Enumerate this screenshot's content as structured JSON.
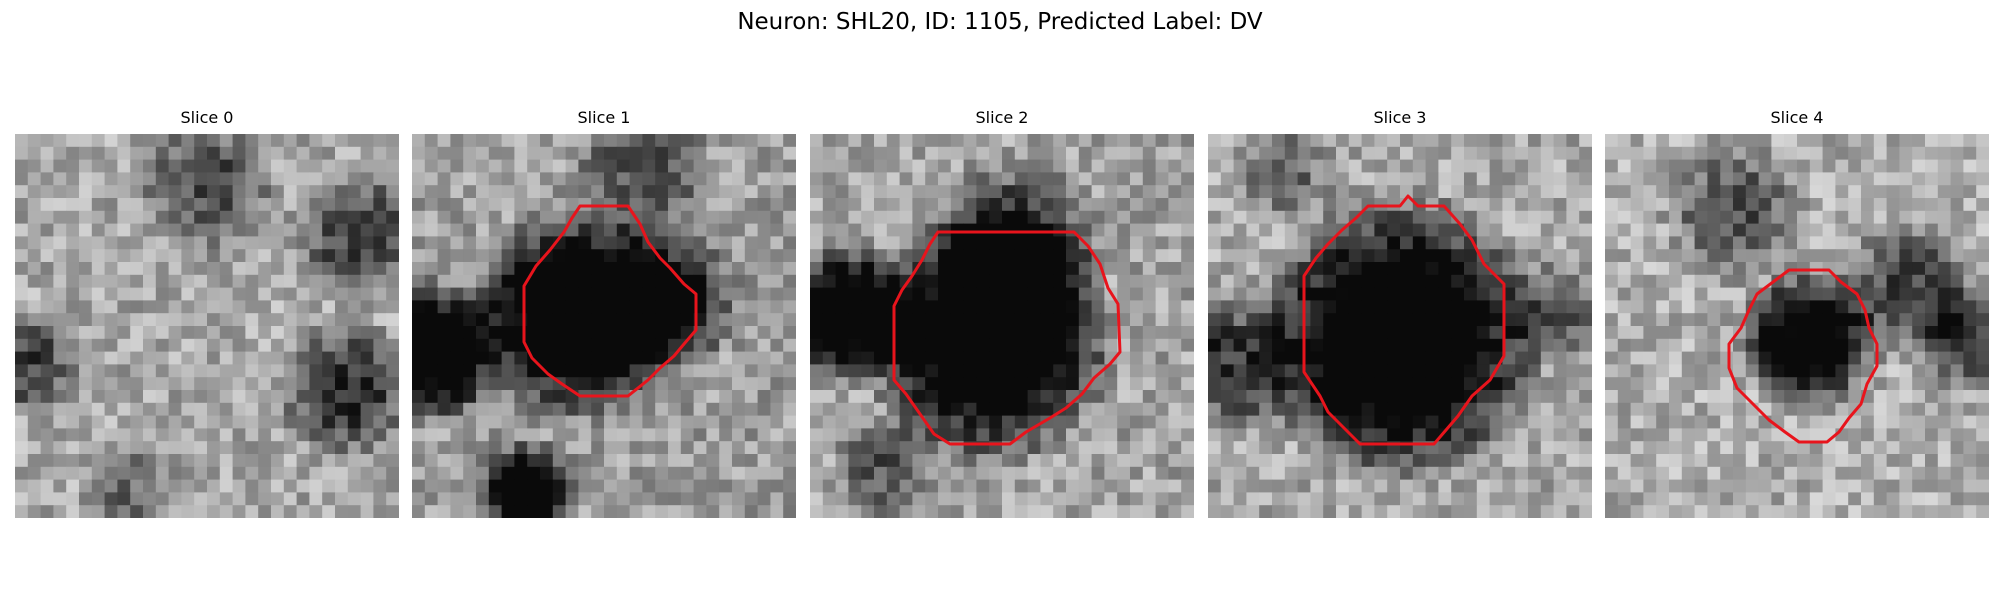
{
  "figure": {
    "title": "Neuron: SHL20, ID: 1105, Predicted Label: DV"
  },
  "colors": {
    "background": "#ffffff",
    "contour": "#e8141c",
    "grayscale_dark": "#0a0a0a",
    "grayscale_light": "#f2f2f2"
  },
  "panels": [
    {
      "title": "Slice 0",
      "has_contour": false
    },
    {
      "title": "Slice 1",
      "has_contour": true
    },
    {
      "title": "Slice 2",
      "has_contour": true
    },
    {
      "title": "Slice 3",
      "has_contour": true
    },
    {
      "title": "Slice 4",
      "has_contour": true
    }
  ]
}
